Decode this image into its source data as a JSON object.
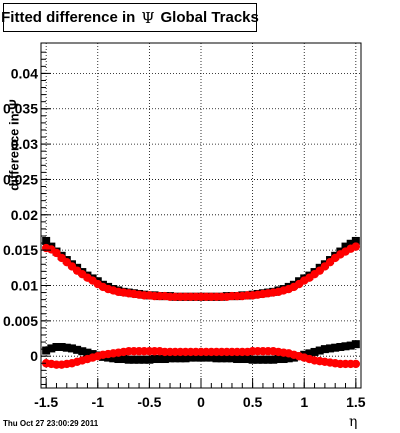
{
  "title": {
    "prefix": "Fitted difference in",
    "symbol": "Ψ",
    "suffix": "Global Tracks"
  },
  "timestamp": "Thu Oct 27 23:00:29 2011",
  "colors": {
    "series_black": "#000000",
    "series_red": "#ff0000",
    "grid": "#000000"
  },
  "chart_data": {
    "type": "scatter",
    "title": "Fitted difference in Ψ Global Tracks",
    "xlabel": "η",
    "ylabel": "difference in Ψ",
    "xlim": [
      -1.55,
      1.55
    ],
    "ylim": [
      -0.0045,
      0.0443
    ],
    "xticks": [
      -1.5,
      -1,
      -0.5,
      0,
      0.5,
      1,
      1.5
    ],
    "xtick_labels": [
      "-1.5",
      "-1",
      "-0.5",
      "0",
      "0.5",
      "1",
      "1.5"
    ],
    "yticks": [
      0,
      0.005,
      0.01,
      0.015,
      0.02,
      0.025,
      0.03,
      0.035,
      0.04
    ],
    "ytick_labels": [
      "0",
      "0.005",
      "0.01",
      "0.015",
      "0.02",
      "0.025",
      "0.03",
      "0.035",
      "0.04"
    ],
    "grid": true,
    "x_range": [
      -1.5,
      1.5
    ],
    "n_points": 61,
    "series": [
      {
        "color": "#000000",
        "marker": "square",
        "values": [
          0.0163,
          0.0155,
          0.0148,
          0.0142,
          0.0136,
          0.013,
          0.0125,
          0.0119,
          0.0114,
          0.011,
          0.0106,
          0.0101,
          0.0098,
          0.0095,
          0.0093,
          0.0091,
          0.009,
          0.0089,
          0.0088,
          0.0087,
          0.0086,
          0.0086,
          0.0085,
          0.0085,
          0.0085,
          0.0084,
          0.0084,
          0.0084,
          0.0084,
          0.0084,
          0.0084,
          0.0084,
          0.0084,
          0.0084,
          0.0084,
          0.0085,
          0.0085,
          0.0085,
          0.0086,
          0.0086,
          0.0087,
          0.0088,
          0.0089,
          0.009,
          0.0091,
          0.0093,
          0.0095,
          0.0098,
          0.0101,
          0.0106,
          0.011,
          0.0114,
          0.0119,
          0.0125,
          0.013,
          0.0136,
          0.0142,
          0.0148,
          0.0155,
          0.0159,
          0.0163
        ]
      },
      {
        "color": "#ff0000",
        "marker": "circle",
        "values": [
          0.0153,
          0.0151,
          0.0146,
          0.0139,
          0.0133,
          0.0127,
          0.0121,
          0.0116,
          0.0111,
          0.0107,
          0.0102,
          0.0098,
          0.0095,
          0.0093,
          0.0091,
          0.009,
          0.0089,
          0.0088,
          0.0087,
          0.0086,
          0.0086,
          0.0085,
          0.0085,
          0.0085,
          0.0084,
          0.0084,
          0.0084,
          0.0084,
          0.0084,
          0.0084,
          0.0084,
          0.0084,
          0.0084,
          0.0084,
          0.0084,
          0.0084,
          0.0085,
          0.0085,
          0.0085,
          0.0086,
          0.0086,
          0.0087,
          0.0088,
          0.0089,
          0.009,
          0.0091,
          0.0093,
          0.0095,
          0.0098,
          0.0102,
          0.0107,
          0.0111,
          0.0116,
          0.0121,
          0.0127,
          0.0133,
          0.0139,
          0.0144,
          0.0148,
          0.0152,
          0.0155
        ]
      },
      {
        "color": "#000000",
        "marker": "square",
        "values": [
          0.0008,
          0.0011,
          0.0013,
          0.0013,
          0.0012,
          0.0011,
          0.0009,
          0.0007,
          0.0005,
          0.0003,
          0.0001,
          -0.0001,
          -0.0002,
          -0.0003,
          -0.0004,
          -0.0004,
          -0.0005,
          -0.0005,
          -0.0005,
          -0.0005,
          -0.0005,
          -0.0004,
          -0.0004,
          -0.0004,
          -0.0003,
          -0.0003,
          -0.0003,
          -0.0003,
          -0.0002,
          -0.0002,
          -0.0002,
          -0.0002,
          -0.0002,
          -0.0003,
          -0.0003,
          -0.0003,
          -0.0003,
          -0.0004,
          -0.0004,
          -0.0004,
          -0.0005,
          -0.0005,
          -0.0005,
          -0.0005,
          -0.0005,
          -0.0004,
          -0.0004,
          -0.0003,
          -0.0002,
          0.0,
          0.0002,
          0.0004,
          0.0006,
          0.0008,
          0.001,
          0.0011,
          0.0012,
          0.0013,
          0.0014,
          0.0015,
          0.0017
        ]
      },
      {
        "color": "#ff0000",
        "marker": "circle",
        "values": [
          -0.001,
          -0.0011,
          -0.0012,
          -0.0012,
          -0.0011,
          -0.001,
          -0.0008,
          -0.0006,
          -0.0004,
          -0.0002,
          0.0,
          0.0002,
          0.0003,
          0.0004,
          0.0005,
          0.0006,
          0.0007,
          0.0007,
          0.0007,
          0.0007,
          0.0007,
          0.0007,
          0.0007,
          0.0006,
          0.0006,
          0.0006,
          0.0006,
          0.0006,
          0.0006,
          0.0006,
          0.0006,
          0.0006,
          0.0006,
          0.0006,
          0.0006,
          0.0006,
          0.0006,
          0.0006,
          0.0006,
          0.0006,
          0.0007,
          0.0007,
          0.0007,
          0.0007,
          0.0007,
          0.0006,
          0.0005,
          0.0004,
          0.0002,
          0.0,
          -0.0002,
          -0.0004,
          -0.0006,
          -0.0007,
          -0.0008,
          -0.0009,
          -0.001,
          -0.0011,
          -0.0011,
          -0.0011,
          -0.0011
        ]
      }
    ]
  }
}
